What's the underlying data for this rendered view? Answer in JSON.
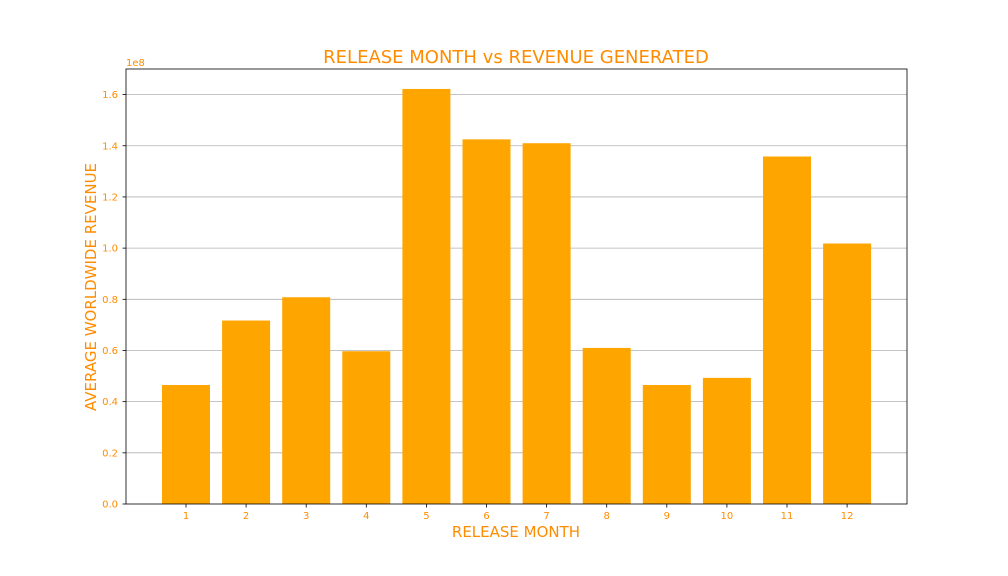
{
  "chart_data": {
    "type": "bar",
    "title": "RELEASE MONTH vs REVENUE GENERATED",
    "xlabel": "RELEASE MONTH",
    "ylabel": "AVERAGE WORLDWIDE REVENUE",
    "y_offset_label": "1e8",
    "categories": [
      "1",
      "2",
      "3",
      "4",
      "5",
      "6",
      "7",
      "8",
      "9",
      "10",
      "11",
      "12"
    ],
    "values": [
      46500000,
      71700000,
      80800000,
      59700000,
      162200000,
      142500000,
      141000000,
      61000000,
      46500000,
      49300000,
      135800000,
      101800000
    ],
    "ylim": [
      0,
      170000000
    ],
    "yticks": [
      0,
      20000000,
      40000000,
      60000000,
      80000000,
      100000000,
      120000000,
      140000000,
      160000000
    ],
    "ytick_labels": [
      "0.0",
      "0.2",
      "0.4",
      "0.6",
      "0.8",
      "1.0",
      "1.2",
      "1.4",
      "1.6"
    ],
    "grid": "y",
    "bar_color": "#ffa500",
    "text_color": "#ff8c00"
  }
}
